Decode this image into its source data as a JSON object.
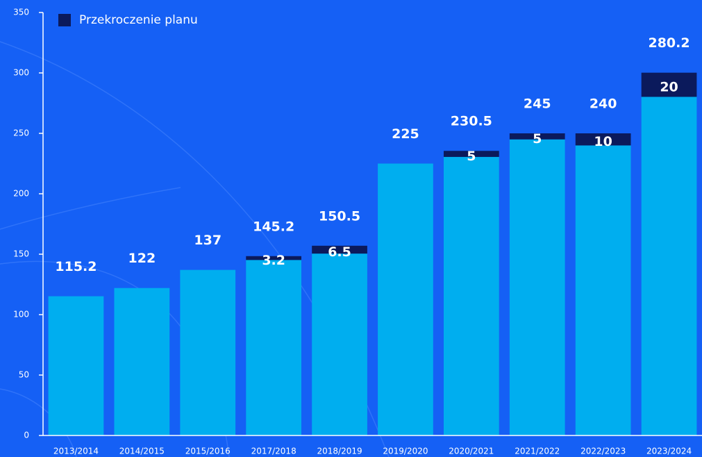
{
  "chart_data": {
    "type": "bar",
    "stacked": true,
    "categories": [
      "2013/2014",
      "2014/2015",
      "2015/2016",
      "2017/2018",
      "2018/2019",
      "2019/2020",
      "2020/2021",
      "2021/2022",
      "2022/2023",
      "2023/2024"
    ],
    "series": [
      {
        "color": "#00aeef",
        "values": [
          115.2,
          122,
          137,
          145.2,
          150.5,
          225,
          230.5,
          245,
          240,
          280.2
        ]
      },
      {
        "name": "Przekroczenie planu",
        "color": "#0b1a5c",
        "values": [
          null,
          null,
          null,
          3.2,
          6.5,
          null,
          5,
          5,
          10,
          20
        ]
      }
    ],
    "ylim": [
      0,
      350
    ],
    "yticks": [
      0,
      50,
      100,
      150,
      200,
      250,
      300,
      350
    ],
    "legend": "top-left"
  }
}
